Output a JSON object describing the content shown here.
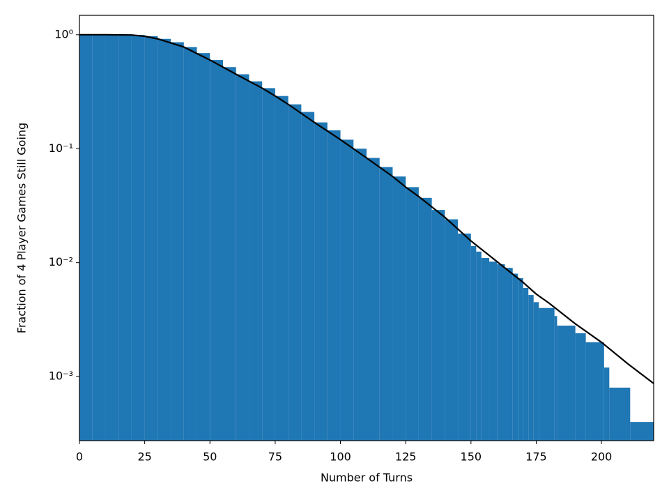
{
  "chart_data": {
    "type": "histogram",
    "xlabel": "Number of Turns",
    "ylabel": "Fraction of 4 Player Games Still Going",
    "yscale": "log",
    "color": "#1f77b4",
    "bins": [
      0,
      5,
      10,
      15,
      20,
      25,
      30,
      35,
      40,
      45,
      50,
      55,
      60,
      65,
      70,
      75,
      80,
      85,
      90,
      95,
      100,
      105,
      110,
      115,
      120,
      125,
      130,
      135,
      140,
      145,
      150,
      152,
      154,
      157,
      160,
      163,
      166,
      168,
      170,
      172,
      174,
      176,
      182,
      183,
      190,
      194,
      201,
      203,
      211,
      220
    ],
    "values": [
      1,
      1,
      1,
      1,
      0.995,
      0.97,
      0.92,
      0.86,
      0.78,
      0.69,
      0.6,
      0.52,
      0.45,
      0.39,
      0.34,
      0.29,
      0.245,
      0.21,
      0.17,
      0.145,
      0.12,
      0.1,
      0.083,
      0.069,
      0.057,
      0.046,
      0.037,
      0.029,
      0.024,
      0.018,
      0.014,
      0.0125,
      0.011,
      0.0102,
      0.0097,
      0.009,
      0.008,
      0.0073,
      0.006,
      0.0052,
      0.0045,
      0.004,
      0.0034,
      0.0028,
      0.0024,
      0.002,
      0.0012,
      0.0008,
      0.0004
    ],
    "line": {
      "color": "#000000",
      "x": [
        0,
        10,
        20,
        25,
        30,
        40,
        50,
        60,
        70,
        75,
        80,
        90,
        100,
        110,
        120,
        125,
        130,
        140,
        150,
        160,
        170,
        175,
        180,
        190,
        200,
        210,
        220
      ],
      "values": [
        1,
        1,
        0.995,
        0.97,
        0.92,
        0.78,
        0.6,
        0.45,
        0.34,
        0.29,
        0.245,
        0.17,
        0.12,
        0.083,
        0.057,
        0.046,
        0.038,
        0.025,
        0.0155,
        0.0102,
        0.0067,
        0.0053,
        0.0044,
        0.0029,
        0.002,
        0.0013,
        0.00087
      ]
    },
    "xlim": [
      0,
      220
    ],
    "ylim": [
      0.000274,
      1.48
    ],
    "xticks": [
      0,
      25,
      50,
      75,
      100,
      125,
      150,
      175,
      200
    ],
    "yticks": [
      {
        "value": 0.001,
        "label": "10⁻³"
      },
      {
        "value": 0.01,
        "label": "10⁻²"
      },
      {
        "value": 0.1,
        "label": "10⁻¹"
      },
      {
        "value": 1,
        "label": "10⁰"
      }
    ]
  }
}
